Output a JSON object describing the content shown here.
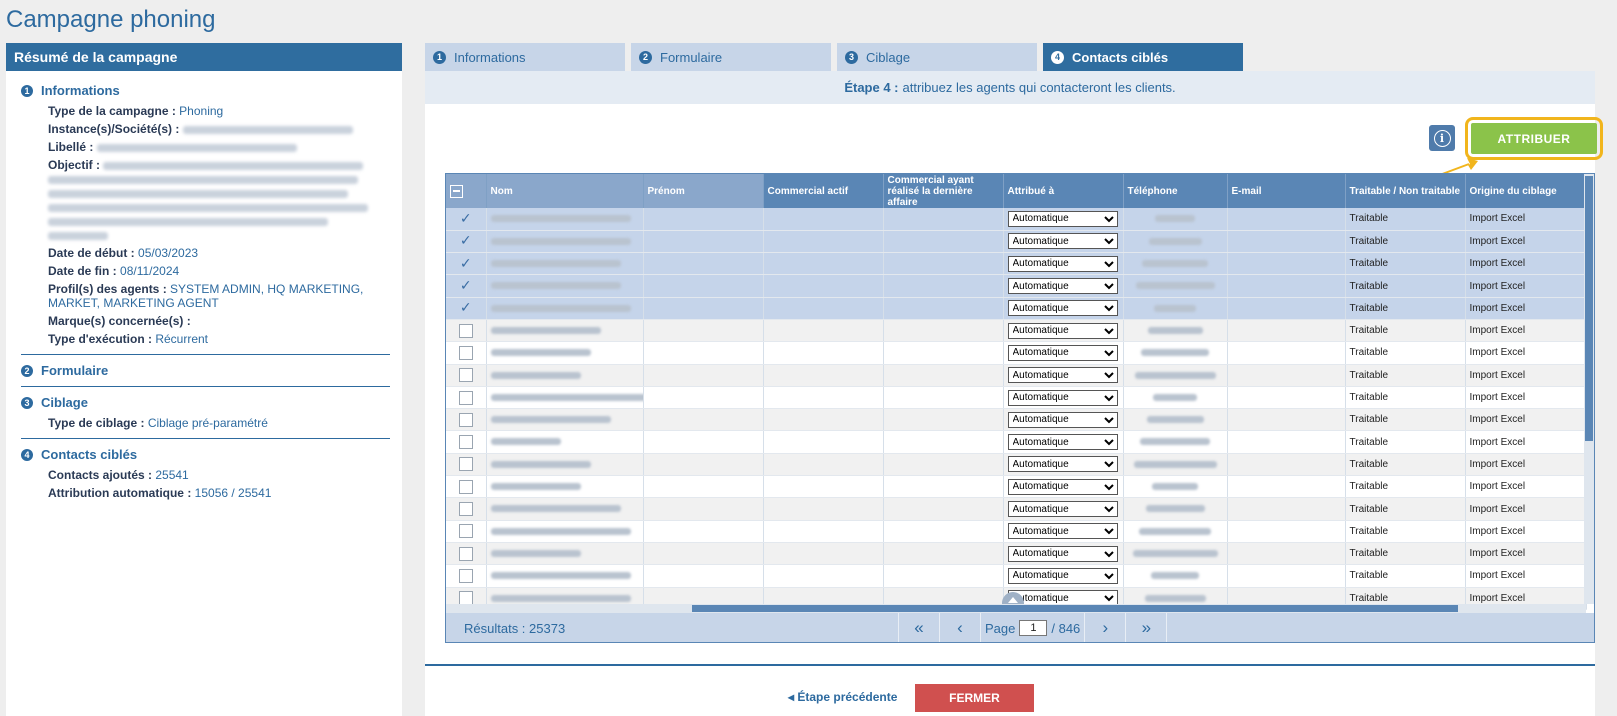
{
  "page": {
    "title": "Campagne phoning"
  },
  "summary": {
    "header": "Résumé de la campagne",
    "sections": [
      {
        "num": "1",
        "title": "Informations"
      },
      {
        "num": "2",
        "title": "Formulaire"
      },
      {
        "num": "3",
        "title": "Ciblage"
      },
      {
        "num": "4",
        "title": "Contacts ciblés"
      }
    ],
    "info": {
      "type_label": "Type de la campagne :",
      "type_value": "Phoning",
      "instance_label": "Instance(s)/Société(s) :",
      "libelle_label": "Libellé :",
      "objectif_label": "Objectif :",
      "date_debut_label": "Date de début :",
      "date_debut_value": "05/03/2023",
      "date_fin_label": "Date de fin :",
      "date_fin_value": "08/11/2024",
      "profils_label": "Profil(s) des agents :",
      "profils_value": "SYSTEM ADMIN, HQ MARKETING, MARKET, MARKETING AGENT",
      "marques_label": "Marque(s) concernée(s) :",
      "execution_label": "Type d'exécution :",
      "execution_value": "Récurrent"
    },
    "ciblage": {
      "label": "Type de ciblage :",
      "value": "Ciblage pré-paramétré"
    },
    "contacts": {
      "ajoutes_label": "Contacts ajoutés :",
      "ajoutes_value": "25541",
      "auto_label": "Attribution automatique :",
      "auto_value": "15056 / 25541"
    }
  },
  "tabs": [
    {
      "num": "1",
      "label": "Informations"
    },
    {
      "num": "2",
      "label": "Formulaire"
    },
    {
      "num": "3",
      "label": "Ciblage"
    },
    {
      "num": "4",
      "label": "Contacts ciblés"
    }
  ],
  "step": {
    "prefix": "Étape 4 :",
    "text": "attribuez les agents qui contacteront les clients."
  },
  "toolbar": {
    "attribuer": "ATTRIBUER",
    "info_icon": "i"
  },
  "table": {
    "headers": [
      "Nom",
      "Prénom",
      "Commercial actif",
      "Commercial ayant réalisé la dernière affaire",
      "Attribué à",
      "Téléphone",
      "E-mail",
      "Traitable / Non traitable",
      "Origine du ciblage"
    ],
    "dropdown_value": "Automatique",
    "traitable": "Traitable",
    "origine": "Import Excel",
    "selected_rows": 5,
    "total_rows": 18
  },
  "pager": {
    "results": "Résultats : 25373",
    "page_label": "Page",
    "page_value": "1",
    "page_total": "/ 846"
  },
  "footer": {
    "prev": "Étape précédente",
    "close": "FERMER"
  },
  "colors": {
    "primary": "#2f6d9f",
    "accent_green": "#8bc34a",
    "highlight": "#f1b51c",
    "danger": "#d0504f"
  }
}
